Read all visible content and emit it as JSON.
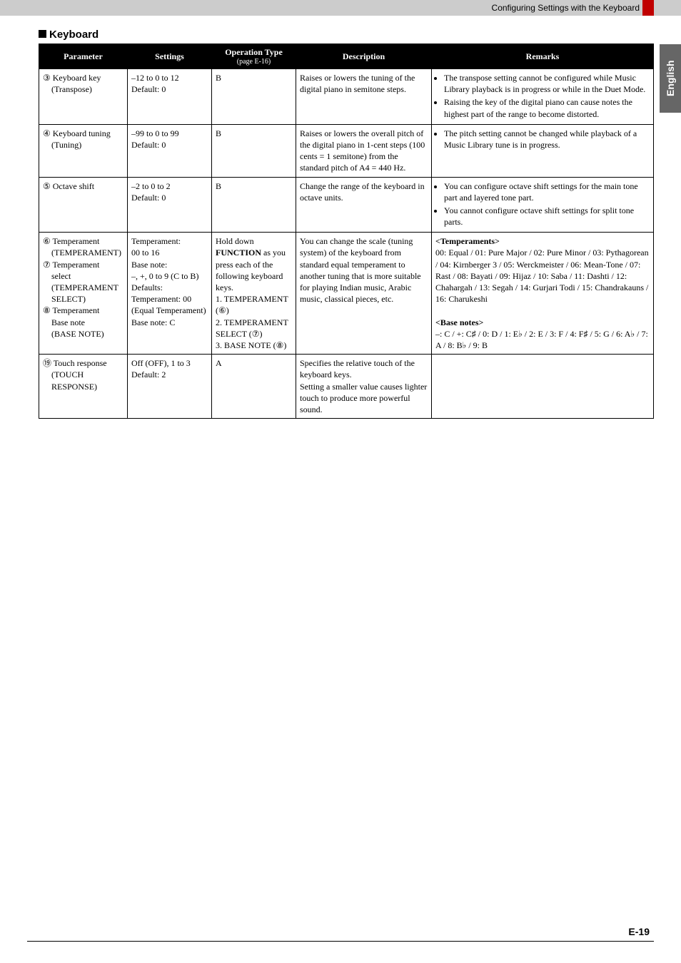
{
  "header": {
    "breadcrumb": "Configuring Settings with the Keyboard"
  },
  "sideTab": "English",
  "section": {
    "title": "Keyboard"
  },
  "table": {
    "headers": {
      "param": "Parameter",
      "settings": "Settings",
      "opType": "Operation Type",
      "opTypeSub": "(page E-16)",
      "desc": "Description",
      "remarks": "Remarks"
    },
    "rows": [
      {
        "param": "③ Keyboard key\n    (Transpose)",
        "settings": "–12 to 0 to 12\nDefault: 0",
        "op": "B",
        "desc": "Raises or lowers the tuning of the digital piano in semitone steps.",
        "remarks_list": [
          "The transpose setting cannot be configured while Music Library playback is in progress or while in the Duet Mode.",
          "Raising the key of the digital piano can cause notes the highest part of the range to become distorted."
        ]
      },
      {
        "param": "④ Keyboard tuning\n    (Tuning)",
        "settings": "–99 to 0 to 99\nDefault: 0",
        "op": "B",
        "desc": "Raises or lowers the overall pitch of the digital piano in 1-cent steps (100 cents = 1 semitone) from the standard pitch of A4 = 440 Hz.",
        "remarks_list": [
          "The pitch setting cannot be changed while playback of a Music Library tune is in progress."
        ]
      },
      {
        "param": "⑤ Octave shift",
        "settings": "–2 to 0 to 2\nDefault: 0",
        "op": "B",
        "desc": "Change the range of the keyboard in octave units.",
        "remarks_list": [
          "You can configure octave shift settings for the main tone part and layered tone part.",
          "You cannot configure octave shift settings for split tone parts."
        ]
      },
      {
        "param": "⑥ Temperament\n    (TEMPERAMENT)\n⑦ Temperament\n    select\n    (TEMPERAMENT\n    SELECT)\n⑧ Temperament\n    Base note\n    (BASE NOTE)",
        "settings": "Temperament:\n00 to 16\nBase note:\n–, +, 0 to 9 (C to B)\nDefaults:\nTemperament: 00\n(Equal Temperament)\nBase note: C",
        "op_html": "Hold down <b>FUNCTION</b> as you press each of the following keyboard keys.<br>1. TEMPERAMENT (⑥)<br>2. TEMPERAMENT SELECT (⑦)<br>3. BASE NOTE (⑧)",
        "desc": "You can change the scale (tuning system) of the keyboard from standard equal temperament to another tuning that is more suitable for playing Indian music, Arabic music, classical pieces, etc.",
        "remarks_html": "<b>&lt;Temperaments&gt;</b><br>00: Equal / 01: Pure Major / 02: Pure Minor / 03: Pythagorean / 04: Kirnberger 3 / 05: Werckmeister / 06: Mean-Tone / 07: Rast / 08: Bayati / 09: Hijaz / 10: Saba / 11: Dashti / 12: Chahargah / 13: Segah / 14: Gurjari Todi / 15: Chandrakauns / 16: Charukeshi<br><br><b>&lt;Base notes&gt;</b><br>–: C / +: C♯ / 0: D / 1: E♭ / 2: E / 3: F / 4: F♯ / 5: G / 6: A♭ / 7: A / 8: B♭ / 9: B"
      },
      {
        "param": "⑲ Touch response\n    (TOUCH\n    RESPONSE)",
        "settings": "Off (OFF), 1 to 3\nDefault: 2",
        "op": "A",
        "desc": "Specifies the relative touch of the keyboard keys.\nSetting a smaller value causes lighter touch to produce more powerful sound.",
        "remarks": ""
      }
    ]
  },
  "footer": {
    "page": "E-19"
  }
}
